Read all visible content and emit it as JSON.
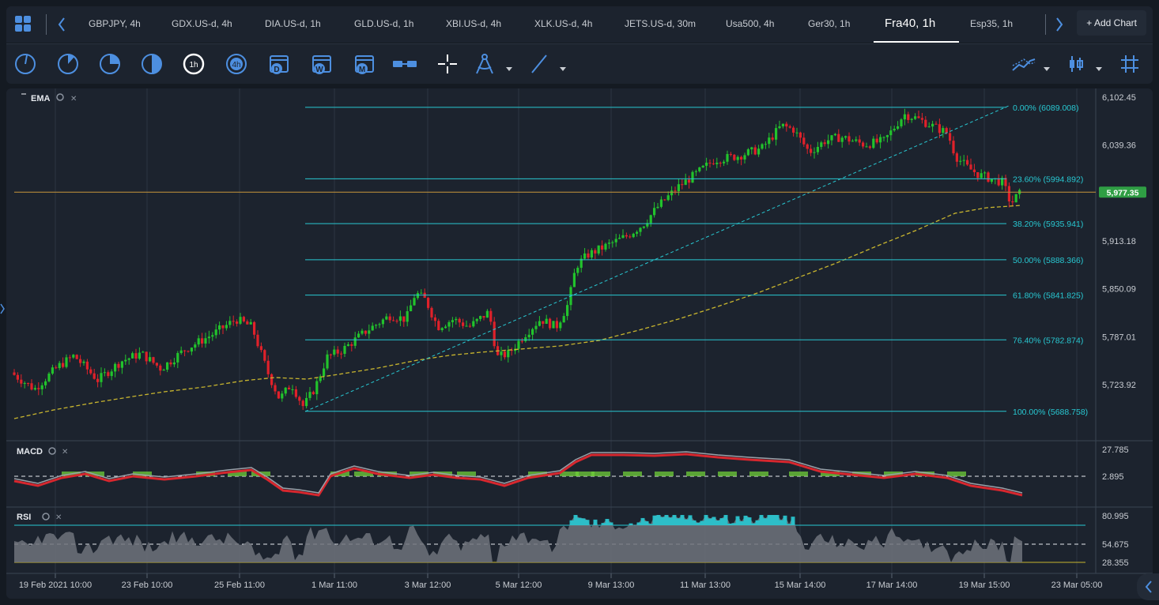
{
  "tabs": [
    {
      "label": "GBPJPY, 4h"
    },
    {
      "label": "GDX.US-d, 4h"
    },
    {
      "label": "DIA.US-d, 1h"
    },
    {
      "label": "GLD.US-d, 1h"
    },
    {
      "label": "XBI.US-d, 4h"
    },
    {
      "label": "XLK.US-d, 4h"
    },
    {
      "label": "JETS.US-d, 30m"
    },
    {
      "label": "Usa500, 4h"
    },
    {
      "label": "Ger30, 1h"
    },
    {
      "label": "Fra40, 1h"
    },
    {
      "label": "Esp35, 1h"
    }
  ],
  "active_tab": "Fra40, 1h",
  "add_chart_label": "+ Add Chart",
  "toolbar": {
    "timeframe_icons": [
      "clock-1m-icon",
      "clock-5m-icon",
      "clock-15m-icon",
      "clock-30m-icon",
      "clock-1h-icon",
      "clock-4h-icon",
      "calendar-day-icon",
      "calendar-week-icon",
      "calendar-month-icon"
    ],
    "hour_label": "1h",
    "four_hour_label": "4h",
    "day_letter": "D",
    "week_letter": "W",
    "month_letter": "M",
    "tools": [
      "range-icon",
      "crosshair-icon",
      "drawing-tools-icon",
      "trendline-icon"
    ],
    "right_tools": [
      "indicators-icon",
      "chart-type-icon",
      "grid-layout-icon"
    ]
  },
  "main_panel": {
    "indicator_label": "EMA",
    "price_axis": [
      "6,102.45",
      "6,039.36",
      "5,913.18",
      "5,850.09",
      "5,787.01",
      "5,723.92"
    ],
    "current_price": "5,977.35",
    "fib_levels": [
      {
        "label": "0.00% (6089.008)",
        "price": 6089.008
      },
      {
        "label": "23.60% (5994.892)",
        "price": 5994.892
      },
      {
        "label": "38.20% (5935.941)",
        "price": 5935.941
      },
      {
        "label": "50.00% (5888.366)",
        "price": 5888.366
      },
      {
        "label": "61.80% (5841.825)",
        "price": 5841.825
      },
      {
        "label": "76.40% (5782.874)",
        "price": 5782.874
      },
      {
        "label": "100.00% (5688.758)",
        "price": 5688.758
      }
    ]
  },
  "macd_panel": {
    "label": "MACD",
    "axis": [
      "27.785",
      "2.895"
    ]
  },
  "rsi_panel": {
    "label": "RSI",
    "axis": [
      "80.995",
      "54.675",
      "28.355"
    ]
  },
  "time_axis": [
    "19 Feb 2021 10:00",
    "23 Feb 10:00",
    "25 Feb 11:00",
    "1 Mar 11:00",
    "3 Mar 12:00",
    "5 Mar 12:00",
    "9 Mar 13:00",
    "11 Mar 13:00",
    "15 Mar 14:00",
    "17 Mar 14:00",
    "19 Mar 15:00",
    "23 Mar 05:00"
  ],
  "colors": {
    "background": "#1c232e",
    "up": "#22c32c",
    "down": "#e0212a",
    "fib": "#28c8d2",
    "ema": "#c9b62e",
    "current_price_line": "#b48a3a",
    "current_price_badge": "#2f9e44",
    "trendline": "#28c8d2",
    "rsi_upper": "#28c8d2",
    "rsi_lower": "#c9b62e"
  }
}
